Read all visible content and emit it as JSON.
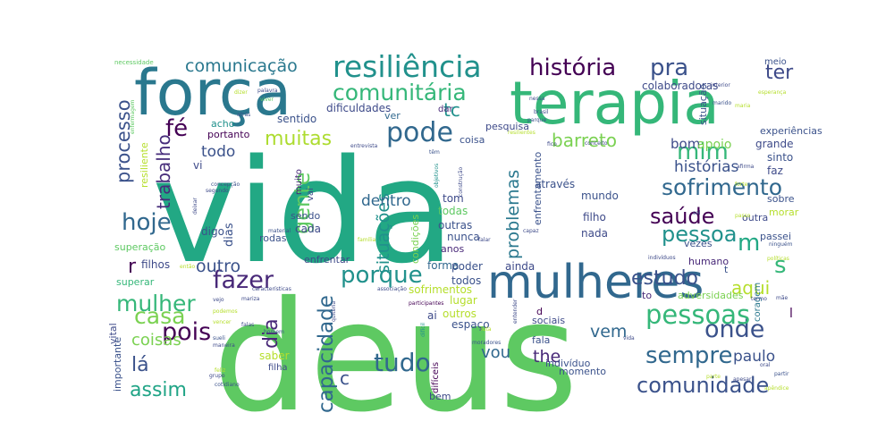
{
  "words": [
    {
      "text": "vida",
      "color": "#22a884"
    },
    {
      "text": "deus",
      "color": "#5ec962"
    },
    {
      "text": "força",
      "color": "#2a788e"
    },
    {
      "text": "terapia",
      "color": "#35b779"
    },
    {
      "text": "mulheres",
      "color": "#31688e"
    },
    {
      "text": "resiliência",
      "color": "#21918c"
    },
    {
      "text": "comunitária",
      "color": "#35b779"
    },
    {
      "text": "comunicação",
      "color": "#2a788e"
    },
    {
      "text": "história",
      "color": "#440154"
    },
    {
      "text": "pra",
      "color": "#3b528b"
    },
    {
      "text": "ter",
      "color": "#3e4a89"
    },
    {
      "text": "fé",
      "color": "#440154"
    },
    {
      "text": "trabalho",
      "color": "#472d7b"
    },
    {
      "text": "processo",
      "color": "#3b528b"
    },
    {
      "text": "muitas",
      "color": "#addc30"
    },
    {
      "text": "pode",
      "color": "#31688e"
    },
    {
      "text": "tc",
      "color": "#21918c"
    },
    {
      "text": "barreto",
      "color": "#7ad151"
    },
    {
      "text": "mim",
      "color": "#35b779"
    },
    {
      "text": "hoje",
      "color": "#31688e"
    },
    {
      "text": "gente",
      "color": "#5ec962"
    },
    {
      "text": "sofrimento",
      "color": "#31688e"
    },
    {
      "text": "saúde",
      "color": "#440154"
    },
    {
      "text": "pessoa",
      "color": "#21918c"
    },
    {
      "text": "histórias",
      "color": "#3b528b"
    },
    {
      "text": "s",
      "color": "#35b779"
    },
    {
      "text": "m",
      "color": "#22a884"
    },
    {
      "text": "fazer",
      "color": "#482878"
    },
    {
      "text": "porque",
      "color": "#21918c"
    },
    {
      "text": "pois",
      "color": "#440154"
    },
    {
      "text": "mulher",
      "color": "#35b779"
    },
    {
      "text": "casa",
      "color": "#7ad151"
    },
    {
      "text": "outro",
      "color": "#3b528b"
    },
    {
      "text": "capacidade",
      "color": "#31688e"
    },
    {
      "text": "situações",
      "color": "#21918c"
    },
    {
      "text": "tudo",
      "color": "#31688e"
    },
    {
      "text": "estudo",
      "color": "#3b528b"
    },
    {
      "text": "aqui",
      "color": "#b5de2b"
    },
    {
      "text": "onde",
      "color": "#3b528b"
    },
    {
      "text": "pessoas",
      "color": "#35b779"
    },
    {
      "text": "sempre",
      "color": "#31688e"
    },
    {
      "text": "comunidade",
      "color": "#3b528b"
    },
    {
      "text": "assim",
      "color": "#20a486"
    },
    {
      "text": "coisas",
      "color": "#7ad151"
    },
    {
      "text": "lá",
      "color": "#3b528b"
    },
    {
      "text": "vou",
      "color": "#31688e"
    },
    {
      "text": "the",
      "color": "#482878"
    },
    {
      "text": "vem",
      "color": "#31688e"
    },
    {
      "text": "paulo",
      "color": "#3b528b"
    },
    {
      "text": "problemas",
      "color": "#2a788e"
    },
    {
      "text": "dentro",
      "color": "#31688e"
    },
    {
      "text": "todo",
      "color": "#3b528b"
    },
    {
      "text": "bom",
      "color": "#3e4a89"
    },
    {
      "text": "apoio",
      "color": "#7ad151"
    },
    {
      "text": "dia",
      "color": "#482878"
    },
    {
      "text": "dias",
      "color": "#3b528b"
    }
  ],
  "small_words": [
    "necessidade",
    "colaboradoras",
    "meio",
    "experiências",
    "grande",
    "sinto",
    "faz",
    "sobre",
    "morar",
    "passei",
    "vezes",
    "humano",
    "adversidades",
    "coragem",
    "dificuldades",
    "sentido",
    "acho",
    "portanto",
    "ver",
    "pesquisa",
    "coisa",
    "dar",
    "tom",
    "todas",
    "outras",
    "nunca",
    "anos",
    "condições",
    "através",
    "mundo",
    "enfrentamento",
    "filho",
    "nada",
    "sendo",
    "cada",
    "rodas",
    "superação",
    "filhos",
    "superar",
    "enfrentar",
    "forma",
    "poder",
    "todos",
    "ainda",
    "sofrimentos",
    "lugar",
    "outros",
    "espaço",
    "ai",
    "sociais",
    "fala",
    "momento",
    "indivíduo",
    "difíceis",
    "bem",
    "vital",
    "importante",
    "saber",
    "filha",
    "vi",
    "digo",
    "muito",
    "vai",
    "resiliente",
    "situação",
    "outra",
    "to",
    "d",
    "t",
    "r",
    "c",
    "l",
    "dizer",
    "palavra",
    "viver",
    "atrás",
    "entrevista",
    "têm",
    "objetivos",
    "nessa",
    "interior",
    "esperança",
    "maria",
    "marido",
    "brasil",
    "fico",
    "conceito",
    "afirma",
    "forte",
    "passo",
    "sol",
    "capaz",
    "falar",
    "família",
    "material",
    "concepção",
    "segundo",
    "deixar",
    "então",
    "características",
    "associação",
    "participantes",
    "quitéria",
    "homem",
    "mariza",
    "vejo",
    "podemos",
    "vencer",
    "sueli",
    "maneira",
    "feliz",
    "cotidiano",
    "grupo",
    "entender",
    "luta",
    "moradores",
    "difícil",
    "vida2",
    "parte",
    "apesar",
    "apêndice",
    "partir",
    "oral",
    "termo",
    "mãe",
    "indivíduos",
    "ninguém",
    "políticas",
    "enfermagem",
    "construção",
    "falas",
    "parque",
    "resilientes"
  ]
}
